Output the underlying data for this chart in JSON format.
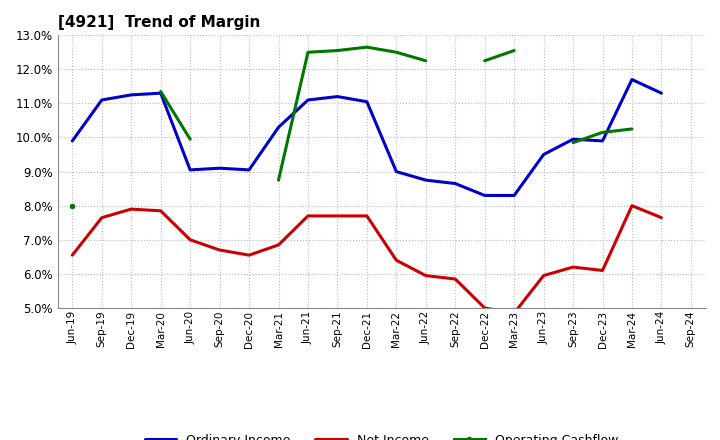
{
  "title": "[4921]  Trend of Margin",
  "x_labels": [
    "Jun-19",
    "Sep-19",
    "Dec-19",
    "Mar-20",
    "Jun-20",
    "Sep-20",
    "Dec-20",
    "Mar-21",
    "Jun-21",
    "Sep-21",
    "Dec-21",
    "Mar-22",
    "Jun-22",
    "Sep-22",
    "Dec-22",
    "Mar-23",
    "Jun-23",
    "Sep-23",
    "Dec-23",
    "Mar-24",
    "Jun-24",
    "Sep-24"
  ],
  "ordinary_income": [
    9.9,
    11.1,
    11.25,
    11.3,
    9.05,
    9.1,
    9.05,
    10.3,
    11.1,
    11.2,
    11.05,
    9.0,
    8.75,
    8.65,
    8.3,
    8.3,
    9.5,
    9.95,
    9.9,
    11.7,
    11.3,
    null
  ],
  "net_income": [
    6.55,
    7.65,
    7.9,
    7.85,
    7.0,
    6.7,
    6.55,
    6.85,
    7.7,
    7.7,
    7.7,
    6.4,
    5.95,
    5.85,
    5.0,
    4.85,
    5.95,
    6.2,
    6.1,
    8.0,
    7.65,
    null
  ],
  "operating_cashflow": [
    8.0,
    null,
    null,
    11.35,
    9.95,
    null,
    null,
    8.75,
    12.5,
    12.55,
    12.65,
    12.5,
    12.25,
    null,
    12.25,
    12.55,
    null,
    9.85,
    10.15,
    10.25,
    null,
    null
  ],
  "ylim_min": 5.0,
  "ylim_max": 13.0,
  "yticks": [
    5.0,
    6.0,
    7.0,
    8.0,
    9.0,
    10.0,
    11.0,
    12.0,
    13.0
  ],
  "color_oi": "#0000CC",
  "color_ni": "#CC0000",
  "color_ocf": "#007700",
  "bg_color": "#FFFFFF",
  "grid_color": "#BBBBBB",
  "legend_labels": [
    "Ordinary Income",
    "Net Income",
    "Operating Cashflow"
  ]
}
